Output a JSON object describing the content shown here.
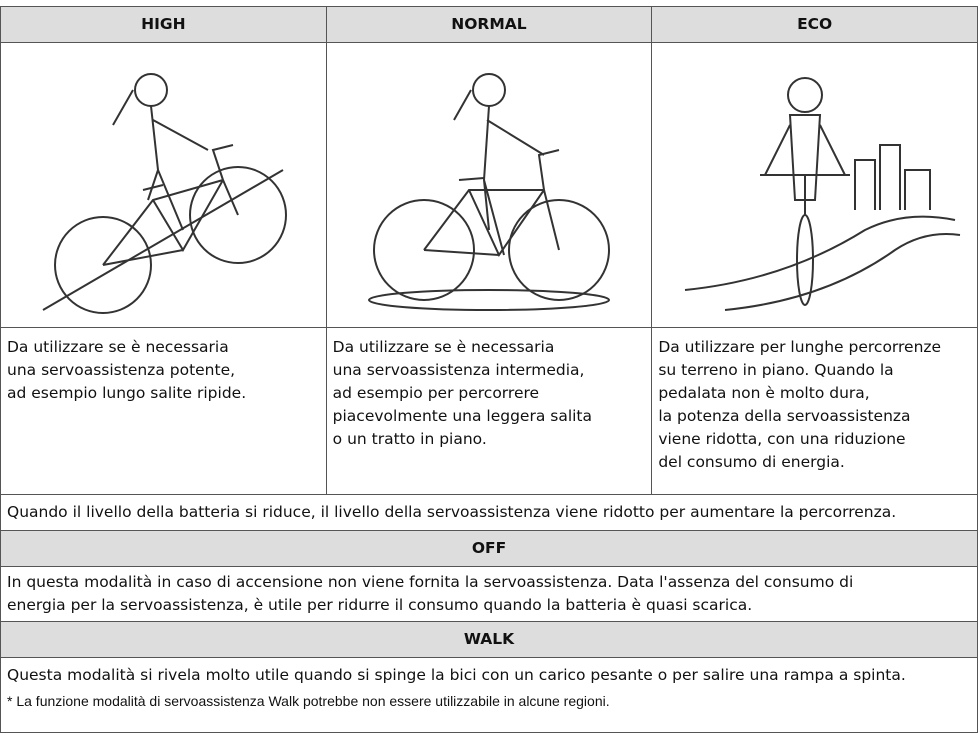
{
  "table": {
    "columns": [
      {
        "header": "HIGH",
        "description": [
          "Da utilizzare se è necessaria",
          "una servoassistenza potente,",
          "ad esempio lungo salite ripide."
        ]
      },
      {
        "header": "NORMAL",
        "description": [
          "Da utilizzare se è necessaria",
          "una servoassistenza intermedia,",
          "ad esempio per percorrere",
          "piacevolmente una leggera salita",
          "o un tratto in piano."
        ]
      },
      {
        "header": "ECO",
        "description": [
          "Da utilizzare per lunghe percorrenze",
          "su terreno in piano. Quando la",
          "pedalata non è molto dura,",
          "la potenza della servoassistenza",
          "viene ridotta, con una riduzione",
          "del consumo di energia."
        ]
      }
    ],
    "note": "Quando il livello della batteria si riduce, il livello della servoassistenza viene ridotto per aumentare la percorrenza.",
    "off": {
      "header": "OFF",
      "text": [
        "In questa modalità in caso di accensione non viene fornita la servoassistenza. Data l'assenza del consumo di",
        "energia per la servoassistenza, è utile per ridurre il consumo quando la batteria è quasi scarica."
      ]
    },
    "walk": {
      "header": "WALK",
      "text": "Questa modalità si rivela molto utile quando si spinge la bici con un carico pesante o per salire una rampa a spinta.",
      "footnote": "* La funzione modalità di servoassistenza Walk potrebbe non essere utilizzabile in alcune regioni."
    }
  }
}
